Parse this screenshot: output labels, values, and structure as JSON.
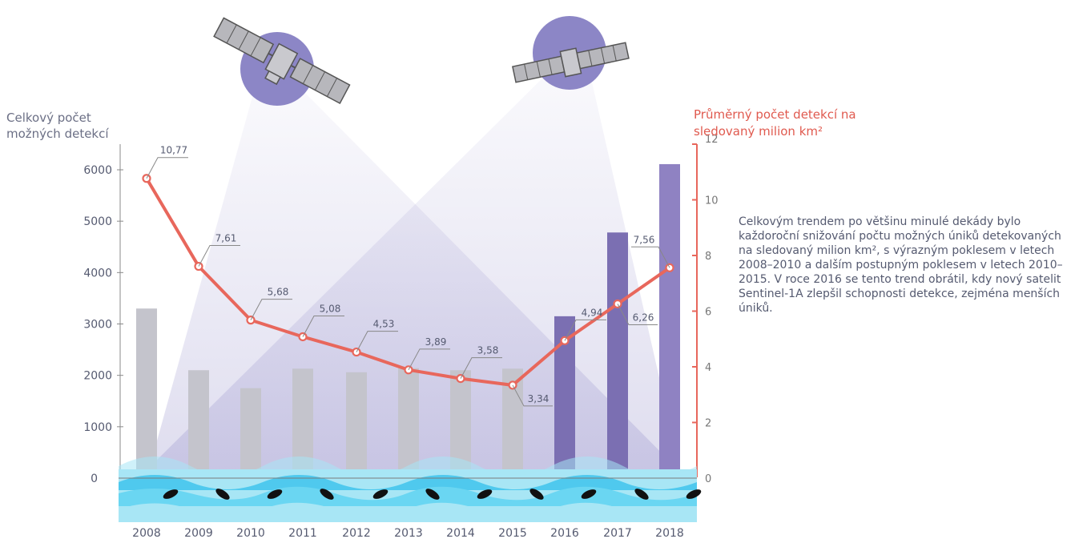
{
  "chart_data": {
    "type": "bar+line",
    "categories": [
      "2008",
      "2009",
      "2010",
      "2011",
      "2012",
      "2013",
      "2014",
      "2015",
      "2016",
      "2017",
      "2018"
    ],
    "series": [
      {
        "kind": "bar",
        "axis": "left",
        "values": [
          3300,
          2100,
          1750,
          2130,
          2060,
          2140,
          2100,
          2130,
          3150,
          4780,
          6110
        ],
        "colors": [
          "#c4c4cc",
          "#c4c4cc",
          "#c4c4cc",
          "#c4c4cc",
          "#c4c4cc",
          "#c4c4cc",
          "#c4c4cc",
          "#c4c4cc",
          "#7b6fb2",
          "#7b6fb2",
          "#8f82c2"
        ]
      },
      {
        "kind": "line",
        "axis": "right",
        "values": [
          10.77,
          7.61,
          5.68,
          5.08,
          4.53,
          3.89,
          3.58,
          3.34,
          4.94,
          6.26,
          7.56
        ],
        "labels": [
          "10,77",
          "7,61",
          "5,68",
          "5,08",
          "4,53",
          "3,89",
          "3,58",
          "3,34",
          "4,94",
          "6,26",
          "7,56"
        ],
        "color": "#e8675c"
      }
    ],
    "ylabel_left": [
      "Celkový počet",
      "možných detekcí"
    ],
    "ylabel_right": [
      "Průměrný počet detekcí na",
      "sledovaný milion km²"
    ],
    "y_left_ticks": [
      "0",
      "1000",
      "2000",
      "3000",
      "4000",
      "5000",
      "6000"
    ],
    "y_right_ticks": [
      "0",
      "2",
      "4",
      "6",
      "8",
      "10",
      "12"
    ],
    "ylim_left": [
      0,
      6000
    ],
    "ylim_right": [
      0,
      12
    ]
  },
  "description": "Celkovým trendem po většinu minulé dekády bylo každoroční snižování počtu možných úniků detekovaných na sledovaný milion km², s výrazným poklesem v letech 2008–2010 a dalším postupným poklesem v letech 2010–2015. V roce 2016 se tento trend obrátil, kdy nový satelit Sentinel-1A zlepšil schopnosti detekce, zejména menších úniků.",
  "decorations": {
    "satellite_icons": [
      "satellite-icon",
      "satellite-icon"
    ],
    "wave_colors": [
      "#a8e6f5",
      "#5fd0ef"
    ],
    "beam_color": "#8c86c6"
  }
}
